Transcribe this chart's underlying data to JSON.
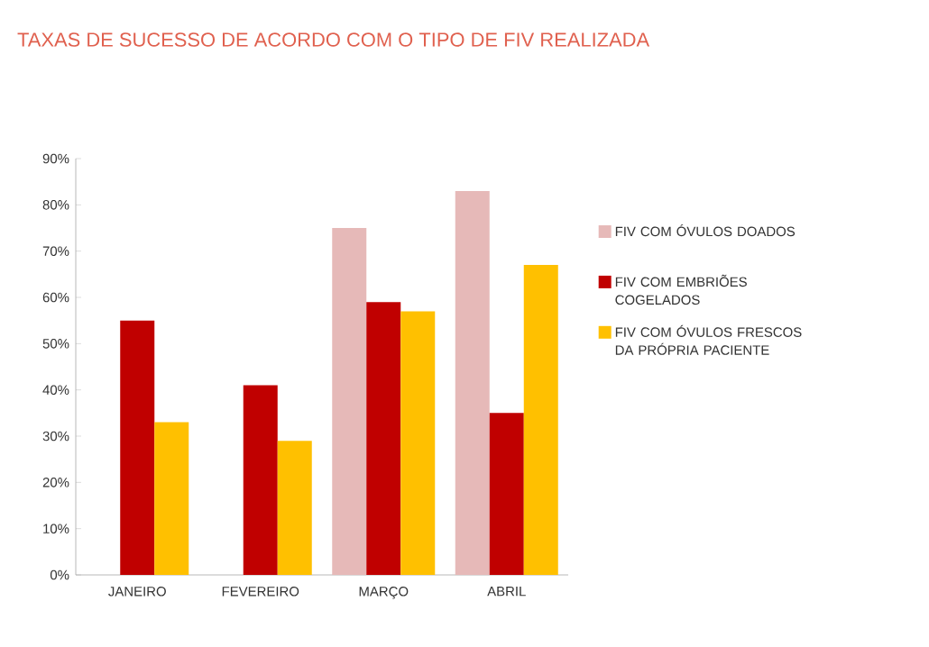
{
  "chart_data": {
    "type": "bar",
    "title": "TAXAS DE SUCESSO DE ACORDO COM O TIPO DE FIV REALIZADA",
    "categories": [
      "JANEIRO",
      "FEVEREIRO",
      "MARÇO",
      "ABRIL"
    ],
    "series": [
      {
        "name": "FIV COM ÓVULOS DOADOS",
        "color": "#e6b9b8",
        "values": [
          null,
          null,
          75,
          83
        ]
      },
      {
        "name": "FIV COM EMBRIÕES COGELADOS",
        "color": "#c00000",
        "values": [
          55,
          41,
          59,
          35
        ]
      },
      {
        "name": "FIV COM ÓVULOS FRESCOS DA PRÓPRIA PACIENTE",
        "color": "#ffc000",
        "values": [
          33,
          29,
          57,
          67
        ]
      }
    ],
    "ylim": [
      0,
      90
    ],
    "yticks": [
      {
        "value": 0,
        "label": "0%"
      },
      {
        "value": 10,
        "label": "10%"
      },
      {
        "value": 20,
        "label": "20%"
      },
      {
        "value": 30,
        "label": "30%"
      },
      {
        "value": 40,
        "label": "40%"
      },
      {
        "value": 50,
        "label": "50%"
      },
      {
        "value": 60,
        "label": "60%"
      },
      {
        "value": 70,
        "label": "70%"
      },
      {
        "value": 80,
        "label": "80%"
      },
      {
        "value": 90,
        "label": "90%"
      }
    ],
    "legend": "right"
  }
}
